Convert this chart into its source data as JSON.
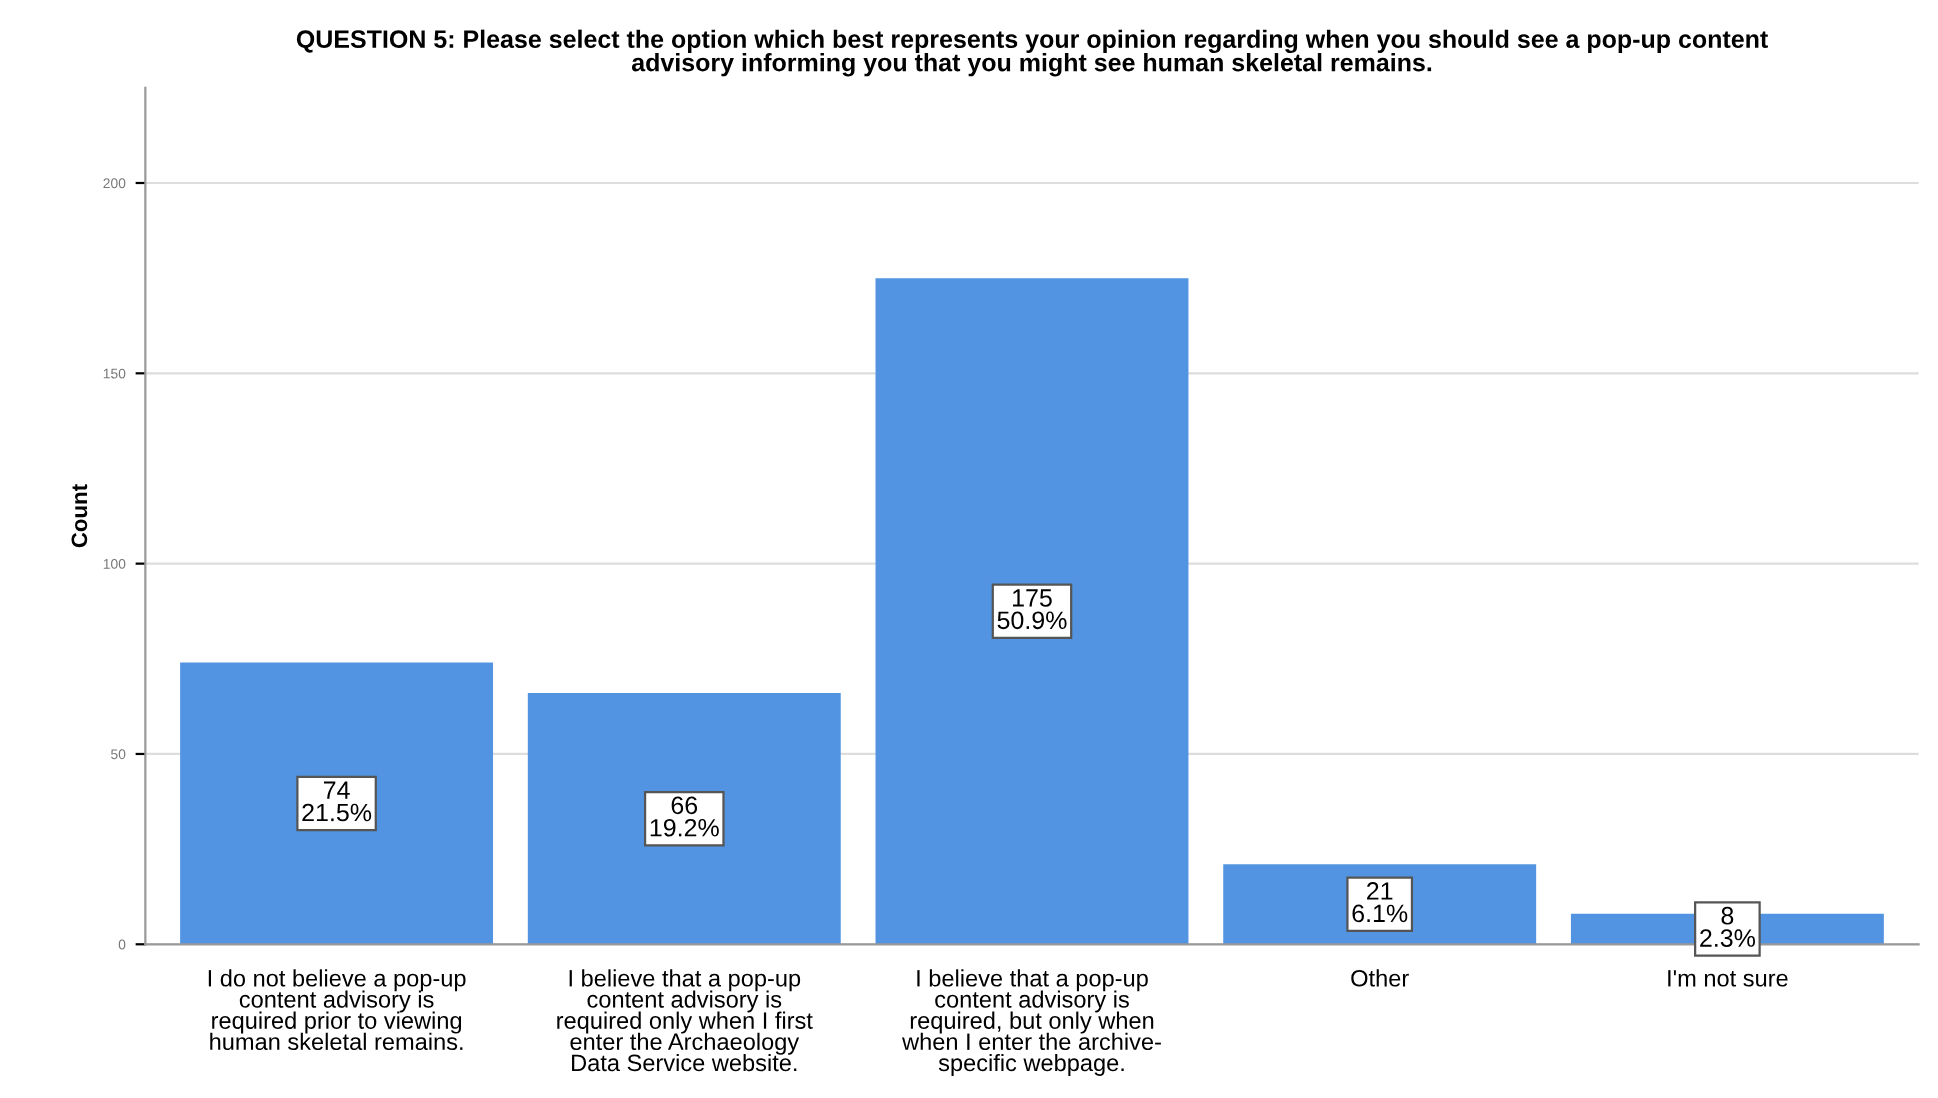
{
  "chart_data": {
    "type": "bar",
    "title": "QUESTION 5: Please select the option which best represents your opinion regarding when you should see a pop-up content\nadvisory informing you that you might see human skeletal remains.",
    "ylabel": "Count",
    "categories": [
      "I do not believe a pop-up\ncontent advisory is\nrequired prior to viewing\nhuman skeletal remains.",
      "I believe that a pop-up\ncontent advisory is\nrequired only when I first\nenter the Archaeology\nData Service website.",
      "I believe that a pop-up\ncontent advisory is\nrequired, but only when\nwhen I enter the archive-\nspecific webpage.",
      "Other",
      "I'm not sure"
    ],
    "values": [
      74,
      66,
      175,
      21,
      8
    ],
    "value_labels": [
      "74\n21.5%",
      "66\n19.2%",
      "175\n50.9%",
      "21\n6.1%",
      "8\n2.3%"
    ],
    "color": "#5294e2",
    "ylim": [
      0,
      225
    ],
    "yticks": [
      0,
      50,
      100,
      150,
      200
    ],
    "grid": "y"
  }
}
